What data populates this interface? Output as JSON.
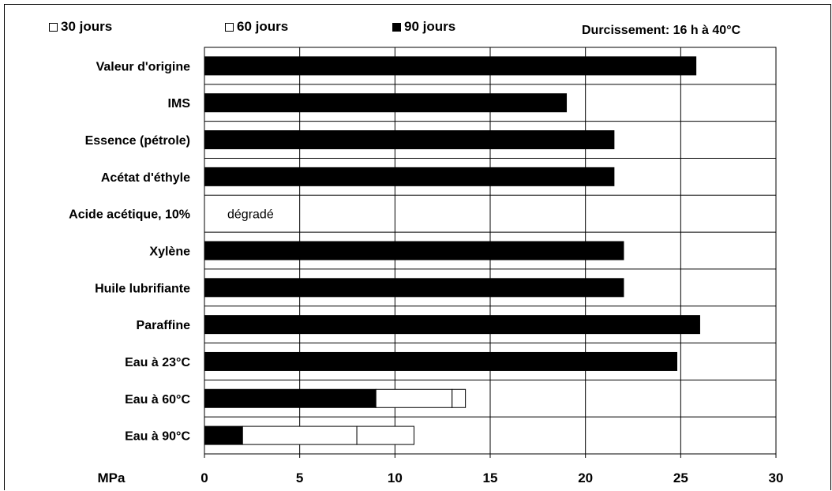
{
  "legend": {
    "items": [
      {
        "label": "30 jours",
        "color": "#ffffff"
      },
      {
        "label": "60 jours",
        "color": "#ffffff"
      },
      {
        "label": "90 jours",
        "color": "#000000"
      }
    ]
  },
  "curing_note": "Durcissement: 16 h à 40°C",
  "chart_data": {
    "type": "bar",
    "orientation": "horizontal",
    "stacked": true,
    "categories": [
      "Valeur d'origine",
      "IMS",
      "Essence (pétrole)",
      "Acétat d'éthyle",
      "Acide acétique, 10%",
      "Xylène",
      "Huile lubrifiante",
      "Paraffine",
      "Eau à 23°C",
      "Eau à 60°C",
      "Eau à 90°C"
    ],
    "series": [
      {
        "name": "90 jours",
        "color": "#000000",
        "values": [
          25.8,
          19.0,
          21.5,
          21.5,
          0,
          22.0,
          22.0,
          26.0,
          24.8,
          9.0,
          2.0
        ]
      },
      {
        "name": "60 jours",
        "color": "#ffffff",
        "values": [
          0,
          0,
          0,
          0,
          0,
          0,
          0,
          0,
          0,
          4.0,
          6.0
        ]
      },
      {
        "name": "30 jours",
        "color": "#ffffff",
        "values": [
          0,
          0,
          0,
          0,
          0,
          0,
          0,
          0,
          0,
          0.7,
          3.0
        ]
      }
    ],
    "annotations": [
      {
        "category": "Acide acétique, 10%",
        "text": "dégradé"
      }
    ],
    "xlabel": "MPa",
    "xlim": [
      0,
      30
    ],
    "xticks": [
      0,
      5,
      10,
      15,
      20,
      25,
      30
    ],
    "grid": true,
    "legend_position": "top"
  }
}
